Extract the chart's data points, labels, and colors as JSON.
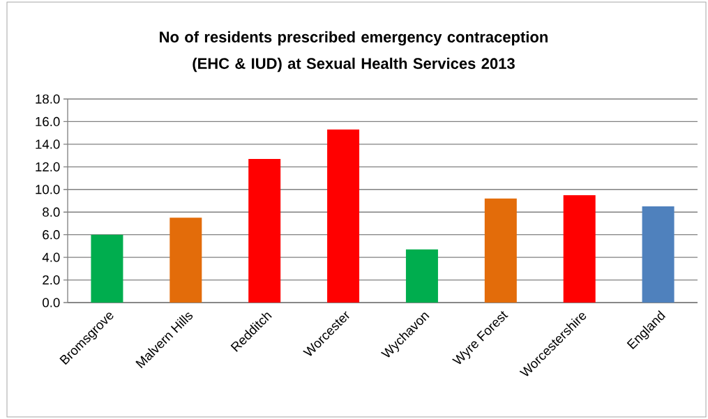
{
  "chart_data": {
    "type": "bar",
    "title": "No of residents prescribed emergency contraception (EHC & IUD) at Sexual Health Services 2013",
    "categories": [
      "Bromsgrove",
      "Malvern Hills",
      "Redditch",
      "Worcester",
      "Wychavon",
      "Wyre Forest",
      "Worcestershire",
      "England"
    ],
    "values": [
      6.0,
      7.5,
      12.7,
      15.3,
      4.7,
      9.2,
      9.5,
      8.5
    ],
    "colors": [
      "#00ad4e",
      "#e36c0a",
      "#ff0000",
      "#ff0000",
      "#00ad4e",
      "#e36c0a",
      "#ff0000",
      "#4f81bd"
    ],
    "ylim": [
      0,
      18
    ],
    "yticks": [
      {
        "value": 0,
        "label": "0.0"
      },
      {
        "value": 2,
        "label": "2.0"
      },
      {
        "value": 4,
        "label": "4.0"
      },
      {
        "value": 6,
        "label": "6.0"
      },
      {
        "value": 8,
        "label": "8.0"
      },
      {
        "value": 10,
        "label": "10.0"
      },
      {
        "value": 12,
        "label": "12.0"
      },
      {
        "value": 14,
        "label": "14.0"
      },
      {
        "value": 16,
        "label": "16.0"
      },
      {
        "value": 18,
        "label": "18.0"
      }
    ],
    "grid": "y"
  }
}
